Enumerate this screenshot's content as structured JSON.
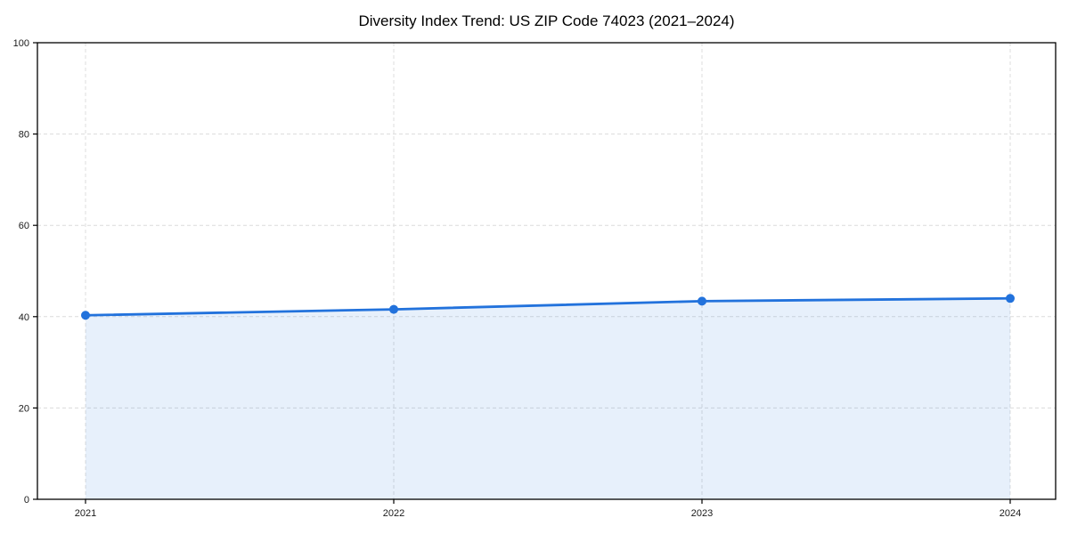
{
  "chart_data": {
    "type": "line",
    "title": "Diversity Index Trend: US ZIP Code 74023 (2021–2024)",
    "x": [
      2021,
      2022,
      2023,
      2024
    ],
    "categories": [
      "2021",
      "2022",
      "2023",
      "2024"
    ],
    "series": [
      {
        "name": "Diversity Index",
        "values": [
          40.3,
          41.6,
          43.4,
          44.0
        ]
      }
    ],
    "xlabel": "",
    "ylabel": "",
    "ylim": [
      0,
      100
    ],
    "yticks": [
      0,
      20,
      40,
      60,
      80,
      100
    ],
    "grid": true,
    "grid_style": "dashed",
    "legend_position": "none",
    "area_fill": true,
    "marker": "circle",
    "colors": {
      "line": "#2272dc",
      "fill": "#e6effb",
      "grid": "#dcdcdc",
      "axis": "#000000",
      "text": "#1a1a1a",
      "background": "#ffffff"
    }
  }
}
